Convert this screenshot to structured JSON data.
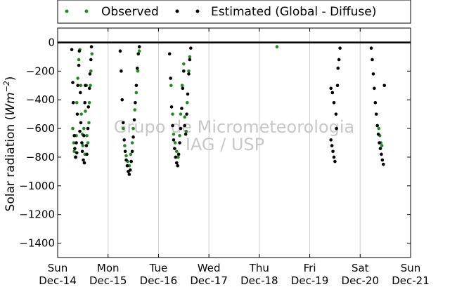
{
  "chart_data": {
    "type": "scatter",
    "title": "",
    "ylabel": "Solar radiation ($Wm^{-2}$)",
    "ylabel_text": "Solar radiation (",
    "ylabel_unit": "Wm",
    "ylabel_exp": "−2",
    "ylabel_close": ")",
    "xlabel": "",
    "xlim": [
      0,
      7
    ],
    "ylim": [
      -1500,
      100
    ],
    "yticks": [
      0,
      -200,
      -400,
      -600,
      -800,
      -1000,
      -1200,
      -1400
    ],
    "ytick_labels": [
      "0",
      "−200",
      "−400",
      "−600",
      "−800",
      "−1000",
      "−1200",
      "−1400"
    ],
    "xticks": [
      {
        "x": 0,
        "day": "Sun",
        "date": "Dec-14"
      },
      {
        "x": 1,
        "day": "Mon",
        "date": "Dec-15"
      },
      {
        "x": 2,
        "day": "Tue",
        "date": "Dec-16"
      },
      {
        "x": 3,
        "day": "Wed",
        "date": "Dec-17"
      },
      {
        "x": 4,
        "day": "Thu",
        "date": "Dec-18"
      },
      {
        "x": 5,
        "day": "Fri",
        "date": "Dec-19"
      },
      {
        "x": 6,
        "day": "Sat",
        "date": "Dec-20"
      },
      {
        "x": 7,
        "day": "Sun",
        "date": "Dec-21"
      }
    ],
    "grid": {
      "vertical": true,
      "horizontal": false
    },
    "legend": {
      "placement": "top",
      "entries": [
        "Observed",
        "Estimated (Global - Diffuse)"
      ]
    },
    "series": [
      {
        "name": "Observed",
        "color": "#228b22",
        "points": [
          [
            0.3,
            -600
          ],
          [
            0.32,
            -700
          ],
          [
            0.33,
            -760
          ],
          [
            0.35,
            -800
          ],
          [
            0.37,
            -650
          ],
          [
            0.38,
            -420
          ],
          [
            0.4,
            -250
          ],
          [
            0.42,
            -120
          ],
          [
            0.44,
            -50
          ],
          [
            0.46,
            -300
          ],
          [
            0.47,
            -500
          ],
          [
            0.49,
            -640
          ],
          [
            0.5,
            -720
          ],
          [
            0.52,
            -600
          ],
          [
            0.54,
            -780
          ],
          [
            0.55,
            -480
          ],
          [
            0.57,
            -300
          ],
          [
            0.58,
            -650
          ],
          [
            0.6,
            -700
          ],
          [
            0.62,
            -560
          ],
          [
            0.63,
            -420
          ],
          [
            0.65,
            -300
          ],
          [
            0.66,
            -200
          ],
          [
            0.68,
            -80
          ],
          [
            1.3,
            -600
          ],
          [
            1.33,
            -720
          ],
          [
            1.36,
            -790
          ],
          [
            1.39,
            -830
          ],
          [
            1.42,
            -860
          ],
          [
            1.45,
            -780
          ],
          [
            1.48,
            -700
          ],
          [
            1.5,
            -600
          ],
          [
            1.53,
            -470
          ],
          [
            1.56,
            -350
          ],
          [
            1.59,
            -200
          ],
          [
            1.62,
            -60
          ],
          [
            2.25,
            -300
          ],
          [
            2.28,
            -500
          ],
          [
            2.3,
            -640
          ],
          [
            2.33,
            -700
          ],
          [
            2.36,
            -760
          ],
          [
            2.39,
            -800
          ],
          [
            2.42,
            -650
          ],
          [
            2.44,
            -500
          ],
          [
            2.47,
            -300
          ],
          [
            2.5,
            -150
          ],
          [
            2.52,
            -520
          ],
          [
            2.55,
            -620
          ],
          [
            2.57,
            -420
          ],
          [
            2.6,
            -200
          ],
          [
            2.62,
            -100
          ],
          [
            4.35,
            -30
          ],
          [
            6.37,
            -600
          ],
          [
            6.39,
            -650
          ],
          [
            6.41,
            -700
          ],
          [
            6.43,
            -720
          ]
        ]
      },
      {
        "name": "Estimated (Global - Diffuse)",
        "color": "#000000",
        "points": [
          [
            0.28,
            -50
          ],
          [
            0.3,
            -280
          ],
          [
            0.31,
            -420
          ],
          [
            0.33,
            -650
          ],
          [
            0.34,
            -740
          ],
          [
            0.36,
            -800
          ],
          [
            0.37,
            -700
          ],
          [
            0.39,
            -500
          ],
          [
            0.4,
            -300
          ],
          [
            0.42,
            -160
          ],
          [
            0.43,
            -60
          ],
          [
            0.45,
            -350
          ],
          [
            0.46,
            -560
          ],
          [
            0.48,
            -700
          ],
          [
            0.49,
            -760
          ],
          [
            0.51,
            -820
          ],
          [
            0.52,
            -650
          ],
          [
            0.54,
            -420
          ],
          [
            0.55,
            -300
          ],
          [
            0.57,
            -720
          ],
          [
            0.58,
            -780
          ],
          [
            0.6,
            -600
          ],
          [
            0.61,
            -450
          ],
          [
            0.63,
            -320
          ],
          [
            0.64,
            -220
          ],
          [
            0.66,
            -120
          ],
          [
            0.67,
            -30
          ],
          [
            0.38,
            -770
          ],
          [
            0.44,
            -620
          ],
          [
            0.53,
            -840
          ],
          [
            1.24,
            -60
          ],
          [
            1.26,
            -200
          ],
          [
            1.28,
            -400
          ],
          [
            1.3,
            -560
          ],
          [
            1.32,
            -680
          ],
          [
            1.34,
            -760
          ],
          [
            1.36,
            -820
          ],
          [
            1.38,
            -860
          ],
          [
            1.4,
            -900
          ],
          [
            1.42,
            -920
          ],
          [
            1.44,
            -890
          ],
          [
            1.46,
            -830
          ],
          [
            1.48,
            -760
          ],
          [
            1.5,
            -660
          ],
          [
            1.52,
            -540
          ],
          [
            1.54,
            -420
          ],
          [
            1.56,
            -300
          ],
          [
            1.58,
            -180
          ],
          [
            1.6,
            -80
          ],
          [
            1.62,
            -30
          ],
          [
            2.22,
            -80
          ],
          [
            2.24,
            -250
          ],
          [
            2.26,
            -450
          ],
          [
            2.28,
            -580
          ],
          [
            2.3,
            -680
          ],
          [
            2.32,
            -740
          ],
          [
            2.34,
            -800
          ],
          [
            2.36,
            -840
          ],
          [
            2.38,
            -860
          ],
          [
            2.4,
            -780
          ],
          [
            2.42,
            -700
          ],
          [
            2.44,
            -600
          ],
          [
            2.46,
            -460
          ],
          [
            2.48,
            -320
          ],
          [
            2.5,
            -200
          ],
          [
            2.52,
            -580
          ],
          [
            2.54,
            -640
          ],
          [
            2.56,
            -500
          ],
          [
            2.58,
            -360
          ],
          [
            2.6,
            -220
          ],
          [
            2.62,
            -120
          ],
          [
            2.64,
            -40
          ],
          [
            5.42,
            -680
          ],
          [
            5.44,
            -720
          ],
          [
            5.46,
            -760
          ],
          [
            5.48,
            -800
          ],
          [
            5.5,
            -830
          ],
          [
            5.42,
            -320
          ],
          [
            5.45,
            -350
          ],
          [
            5.48,
            -420
          ],
          [
            5.52,
            -500
          ],
          [
            5.55,
            -300
          ],
          [
            5.58,
            -120
          ],
          [
            5.6,
            -40
          ],
          [
            5.53,
            -600
          ],
          [
            5.56,
            -180
          ],
          [
            6.22,
            -40
          ],
          [
            6.24,
            -120
          ],
          [
            6.26,
            -220
          ],
          [
            6.28,
            -320
          ],
          [
            6.3,
            -420
          ],
          [
            6.32,
            -500
          ],
          [
            6.34,
            -580
          ],
          [
            6.36,
            -640
          ],
          [
            6.38,
            -700
          ],
          [
            6.4,
            -740
          ],
          [
            6.42,
            -780
          ],
          [
            6.44,
            -820
          ],
          [
            6.46,
            -850
          ],
          [
            6.48,
            -300
          ]
        ]
      }
    ]
  },
  "watermark": {
    "line1": "Grupo de Micrometeorologia",
    "line2": "IAG / USP"
  }
}
